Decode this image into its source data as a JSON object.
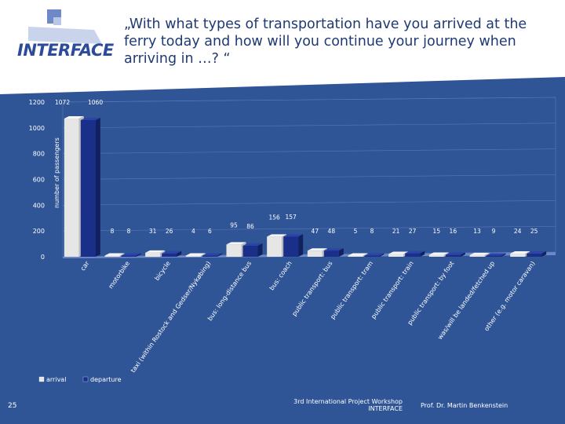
{
  "slide": {
    "title": "„With what types of transportation have you arrived at the ferry today and how will you continue your journey when arriving in …? “",
    "logo_text": "INTERFACE",
    "page_number": "25",
    "footer_workshop_line1": "3rd International Project Workshop",
    "footer_workshop_line2": "INTERFACE",
    "footer_author": "Prof. Dr. Martin Benkenstein",
    "colors": {
      "background_blue": "#2f5597",
      "title_text": "#1f3a73",
      "arrival": "#e6e6e6",
      "departure": "#1a2f8a"
    }
  },
  "chart_data": {
    "type": "bar",
    "title": "",
    "xlabel": "",
    "ylabel": "number of passengers",
    "ylim": [
      0,
      1200
    ],
    "yticks": [
      0,
      200,
      400,
      600,
      800,
      1000,
      1200
    ],
    "categories": [
      "car",
      "motorbike",
      "bicycle",
      "taxi (within Rostock and Gedser/Nykøbing)",
      "bus: long-distance bus",
      "bus: coach",
      "public transport: bus",
      "public transport: tram",
      "public transport: train",
      "public transport: by foot",
      "was/will be landed/fetched up",
      "other (e.g. motor caravan)"
    ],
    "series": [
      {
        "name": "arrival",
        "values": [
          1072,
          8,
          31,
          4,
          95,
          156,
          47,
          5,
          21,
          15,
          13,
          24
        ]
      },
      {
        "name": "departure",
        "values": [
          1060,
          8,
          26,
          6,
          86,
          157,
          48,
          8,
          27,
          16,
          9,
          25
        ]
      }
    ],
    "legend": [
      "arrival",
      "departure"
    ],
    "legend_position": "bottom-left"
  }
}
